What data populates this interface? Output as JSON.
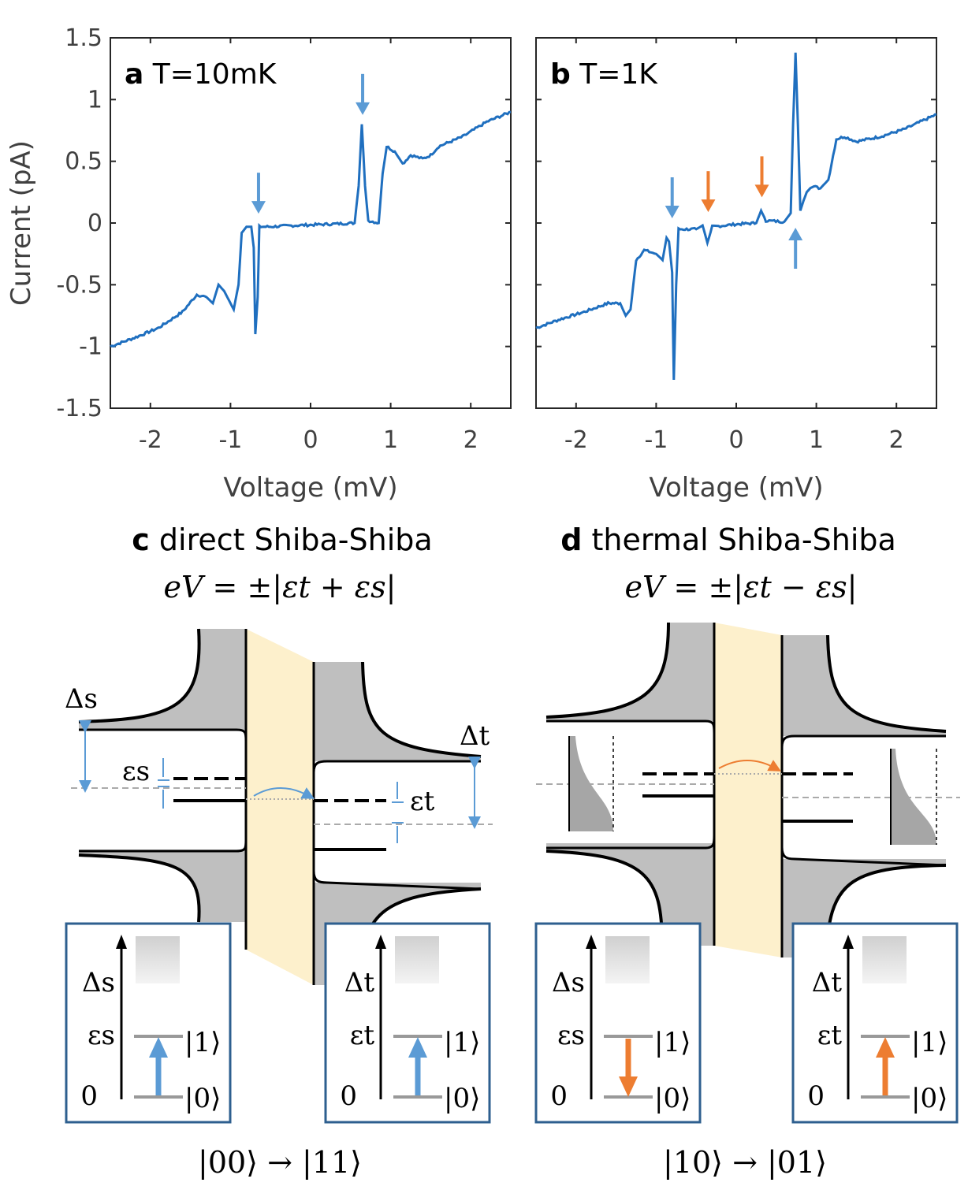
{
  "chart_data": [
    {
      "type": "line",
      "panel": "a",
      "title": "T=10mK",
      "xlabel": "Voltage (mV)",
      "ylabel": "Current (pA)",
      "xlim": [
        -2.5,
        2.5
      ],
      "ylim": [
        -1.5,
        1.5
      ],
      "xticks": [
        "-2",
        "-1",
        "0",
        "1",
        "2"
      ],
      "yticks": [
        "1.5",
        "1",
        "0.5",
        "0",
        "-0.5",
        "-1",
        "-1.5"
      ],
      "series_color": "#1f6fbf",
      "points": [
        [
          -2.5,
          -1.0
        ],
        [
          -2.2,
          -0.93
        ],
        [
          -1.9,
          -0.85
        ],
        [
          -1.6,
          -0.72
        ],
        [
          -1.42,
          -0.58
        ],
        [
          -1.3,
          -0.6
        ],
        [
          -1.22,
          -0.65
        ],
        [
          -1.15,
          -0.5
        ],
        [
          -1.08,
          -0.55
        ],
        [
          -1.0,
          -0.65
        ],
        [
          -0.96,
          -0.7
        ],
        [
          -0.9,
          -0.5
        ],
        [
          -0.86,
          -0.08
        ],
        [
          -0.8,
          -0.03
        ],
        [
          -0.74,
          -0.03
        ],
        [
          -0.71,
          -0.2
        ],
        [
          -0.69,
          -0.9
        ],
        [
          -0.66,
          -0.6
        ],
        [
          -0.64,
          -0.03
        ],
        [
          -0.5,
          -0.03
        ],
        [
          -0.2,
          -0.02
        ],
        [
          0.2,
          -0.01
        ],
        [
          0.55,
          0.0
        ],
        [
          0.6,
          0.3
        ],
        [
          0.64,
          0.8
        ],
        [
          0.68,
          0.3
        ],
        [
          0.72,
          0.02
        ],
        [
          0.85,
          0.0
        ],
        [
          0.9,
          0.4
        ],
        [
          0.95,
          0.62
        ],
        [
          1.05,
          0.58
        ],
        [
          1.15,
          0.48
        ],
        [
          1.25,
          0.55
        ],
        [
          1.4,
          0.52
        ],
        [
          1.5,
          0.55
        ],
        [
          1.6,
          0.62
        ],
        [
          1.9,
          0.7
        ],
        [
          2.2,
          0.82
        ],
        [
          2.5,
          0.9
        ]
      ],
      "arrows": [
        {
          "x": -0.65,
          "color": "#5b9bd5",
          "dir": "down"
        },
        {
          "x": 0.65,
          "color": "#5b9bd5",
          "dir": "down"
        }
      ]
    },
    {
      "type": "line",
      "panel": "b",
      "title": "T=1K",
      "xlabel": "Voltage (mV)",
      "ylabel": "",
      "xlim": [
        -2.5,
        2.5
      ],
      "ylim": [
        -1.5,
        1.5
      ],
      "xticks": [
        "-2",
        "-1",
        "0",
        "1",
        "2"
      ],
      "yticks": [],
      "series_color": "#1f6fbf",
      "points": [
        [
          -2.5,
          -0.85
        ],
        [
          -2.2,
          -0.78
        ],
        [
          -1.9,
          -0.72
        ],
        [
          -1.6,
          -0.65
        ],
        [
          -1.45,
          -0.65
        ],
        [
          -1.38,
          -0.75
        ],
        [
          -1.32,
          -0.7
        ],
        [
          -1.25,
          -0.3
        ],
        [
          -1.15,
          -0.22
        ],
        [
          -1.0,
          -0.25
        ],
        [
          -0.92,
          -0.3
        ],
        [
          -0.87,
          -0.12
        ],
        [
          -0.84,
          -0.15
        ],
        [
          -0.8,
          -0.4
        ],
        [
          -0.78,
          -1.27
        ],
        [
          -0.75,
          -0.5
        ],
        [
          -0.72,
          -0.05
        ],
        [
          -0.5,
          -0.05
        ],
        [
          -0.42,
          -0.02
        ],
        [
          -0.36,
          -0.16
        ],
        [
          -0.3,
          -0.03
        ],
        [
          0.0,
          -0.01
        ],
        [
          0.25,
          0.0
        ],
        [
          0.31,
          0.1
        ],
        [
          0.37,
          0.02
        ],
        [
          0.6,
          0.01
        ],
        [
          0.68,
          0.08
        ],
        [
          0.71,
          0.8
        ],
        [
          0.74,
          1.38
        ],
        [
          0.77,
          0.8
        ],
        [
          0.8,
          0.1
        ],
        [
          0.84,
          0.18
        ],
        [
          0.88,
          0.25
        ],
        [
          0.95,
          0.3
        ],
        [
          1.05,
          0.28
        ],
        [
          1.15,
          0.35
        ],
        [
          1.25,
          0.68
        ],
        [
          1.35,
          0.7
        ],
        [
          1.5,
          0.66
        ],
        [
          1.8,
          0.7
        ],
        [
          2.1,
          0.76
        ],
        [
          2.5,
          0.88
        ]
      ],
      "arrows": [
        {
          "x": -0.8,
          "color": "#5b9bd5",
          "dir": "down"
        },
        {
          "x": -0.35,
          "color": "#ed7d31",
          "dir": "down"
        },
        {
          "x": 0.32,
          "color": "#ed7d31",
          "dir": "down"
        },
        {
          "x": 0.74,
          "color": "#5b9bd5",
          "dir": "up"
        }
      ]
    }
  ],
  "panels": {
    "a": {
      "letter": "a",
      "title": "T=10mK"
    },
    "b": {
      "letter": "b",
      "title": "T=1K"
    },
    "c": {
      "letter": "c",
      "title": "direct Shiba-Shiba",
      "equation": "eV = ±|εt + εs|",
      "transition": "|00⟩ → |11⟩",
      "labels": {
        "delta_s": "Δs",
        "eps_s": "εs",
        "delta_t": "Δt",
        "eps_t": "εt"
      },
      "inset_left": {
        "top": "Δs",
        "mid": "εs",
        "bottom": "0",
        "state1": "|1⟩",
        "state0": "|0⟩"
      },
      "inset_right": {
        "top": "Δt",
        "mid": "εt",
        "bottom": "0",
        "state1": "|1⟩",
        "state0": "|0⟩"
      }
    },
    "d": {
      "letter": "d",
      "title": "thermal Shiba-Shiba",
      "equation": "eV = ±|εt − εs|",
      "transition": "|10⟩ → |01⟩",
      "inset_left": {
        "top": "Δs",
        "mid": "εs",
        "bottom": "0",
        "state1": "|1⟩",
        "state0": "|0⟩"
      },
      "inset_right": {
        "top": "Δt",
        "mid": "εt",
        "bottom": "0",
        "state1": "|1⟩",
        "state0": "|0⟩"
      }
    }
  },
  "colors": {
    "blue": "#5b9bd5",
    "orange": "#ed7d31",
    "curve": "#1f6fbf",
    "barrier": "#fdf0cc",
    "gray": "#bfbfbf"
  }
}
